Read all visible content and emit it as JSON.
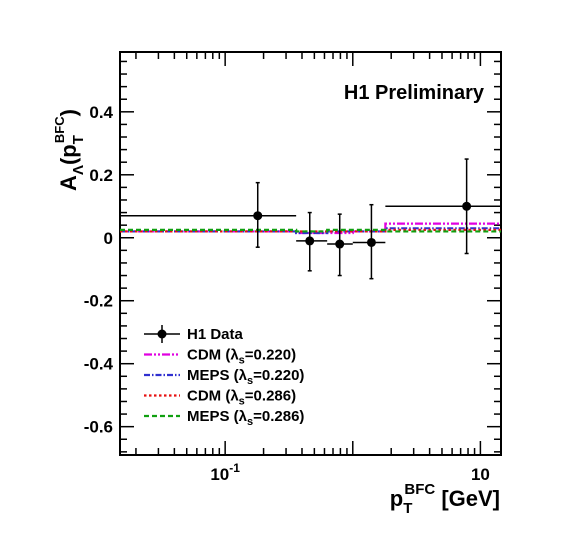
{
  "chart_data": {
    "type": "scatter",
    "annotation": "H1 Preliminary",
    "xlabel": {
      "main": "p",
      "sub": "T",
      "sup": "BFC",
      "unit": " [GeV]"
    },
    "ylabel": {
      "main": "A",
      "sub": "Λ",
      "open": "(p",
      "sub2": "T",
      "sup2": "BFC",
      "close": ")"
    },
    "xscale": "log",
    "xlim": [
      0.015,
      14.5
    ],
    "ylim": [
      -0.69,
      0.59
    ],
    "xticks": [
      {
        "value": 0.1,
        "base": "10",
        "exp": "-1"
      },
      {
        "value": 10,
        "base": "10",
        "exp": ""
      }
    ],
    "yticks": [
      {
        "value": 0.4,
        "label": "0.4"
      },
      {
        "value": 0.2,
        "label": "0.2"
      },
      {
        "value": 0.0,
        "label": "0"
      },
      {
        "value": -0.2,
        "label": "-0.2"
      },
      {
        "value": -0.4,
        "label": "-0.4"
      },
      {
        "value": -0.6,
        "label": "-0.6"
      }
    ],
    "data_points": [
      {
        "x": 0.18,
        "xlow": 0.015,
        "xhigh": 0.36,
        "y": 0.07,
        "ylow": -0.03,
        "yhigh": 0.175
      },
      {
        "x": 0.46,
        "xlow": 0.36,
        "xhigh": 0.63,
        "y": -0.01,
        "ylow": -0.105,
        "yhigh": 0.08
      },
      {
        "x": 0.79,
        "xlow": 0.63,
        "xhigh": 1.0,
        "y": -0.02,
        "ylow": -0.12,
        "yhigh": 0.075
      },
      {
        "x": 1.4,
        "xlow": 1.0,
        "xhigh": 1.8,
        "y": -0.015,
        "ylow": -0.13,
        "yhigh": 0.105
      },
      {
        "x": 7.8,
        "xlow": 1.8,
        "xhigh": 14.5,
        "y": 0.1,
        "ylow": -0.05,
        "yhigh": 0.25
      }
    ],
    "model_edges": [
      0.015,
      0.36,
      0.63,
      1.0,
      1.8,
      14.5
    ],
    "models": [
      {
        "name": "CDM (λs=0.220)",
        "color": "#e000e0",
        "dash": "8,2,2,2,2,2",
        "values": [
          0.02,
          0.015,
          0.015,
          0.02,
          0.045
        ]
      },
      {
        "name": "MEPS (λs=0.220)",
        "color": "#3030d0",
        "dash": "6,2,1.5,2",
        "values": [
          0.02,
          0.015,
          0.02,
          0.02,
          0.03
        ]
      },
      {
        "name": "CDM (λs=0.286)",
        "color": "#e81010",
        "dash": "2.5,2.5",
        "values": [
          0.02,
          0.02,
          0.02,
          0.02,
          0.025
        ]
      },
      {
        "name": "MEPS (λs=0.286)",
        "color": "#10a010",
        "dash": "5,3",
        "values": [
          0.025,
          0.02,
          0.025,
          0.025,
          0.02
        ]
      }
    ],
    "legend": {
      "placement": "bottom-left",
      "entries": [
        {
          "kind": "data",
          "name": "H1 Data",
          "main": "H1 Data",
          "sub": "",
          "tail": ""
        },
        {
          "kind": "model",
          "model": 0,
          "main": "CDM (λ",
          "sub": "s",
          "tail": "=0.220)"
        },
        {
          "kind": "model",
          "model": 1,
          "main": "MEPS (λ",
          "sub": "s",
          "tail": "=0.220)"
        },
        {
          "kind": "model",
          "model": 2,
          "main": "CDM (λ",
          "sub": "s",
          "tail": "=0.286)"
        },
        {
          "kind": "model",
          "model": 3,
          "main": "MEPS (λ",
          "sub": "s",
          "tail": "=0.286)"
        }
      ]
    },
    "grid": false
  }
}
